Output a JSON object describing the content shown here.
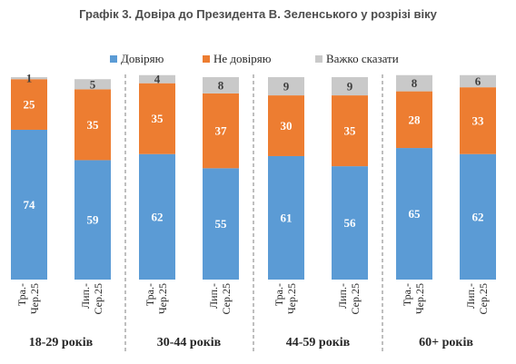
{
  "chart_data": {
    "type": "bar",
    "stacked": true,
    "title": "Графік 3. Довіра до Президента В. Зеленського у розрізі віку",
    "legend_position": "top",
    "grid": false,
    "ylim": [
      0,
      100
    ],
    "groups": [
      "18-29 років",
      "30-44 років",
      "44-59 років",
      "60+ років"
    ],
    "categories": [
      "Тра.-Чер.25",
      "Лип.-Сер.25",
      "Тра.-Чер.25",
      "Лип.-Сер.25",
      "Тра.-Чер.25",
      "Лип.-Сер.25",
      "Тра.-Чер.25",
      "Лип.-Сер.25"
    ],
    "category_lines": [
      [
        "Тра.-",
        "Чер.25"
      ],
      [
        "Лип.-",
        "Сер.25"
      ],
      [
        "Тра.-",
        "Чер.25"
      ],
      [
        "Лип.-",
        "Сер.25"
      ],
      [
        "Тра.-",
        "Чер.25"
      ],
      [
        "Лип.-",
        "Сер.25"
      ],
      [
        "Тра.-",
        "Чер.25"
      ],
      [
        "Лип.-",
        "Сер.25"
      ]
    ],
    "series": [
      {
        "name": "Довіряю",
        "color": "#5b9bd5",
        "label_color": "#ffffff",
        "values": [
          74,
          59,
          62,
          55,
          61,
          56,
          65,
          62
        ]
      },
      {
        "name": "Не довіряю",
        "color": "#ed7d31",
        "label_color": "#ffffff",
        "values": [
          25,
          35,
          35,
          37,
          30,
          35,
          28,
          33
        ]
      },
      {
        "name": "Важко сказати",
        "color": "#c9c9c9",
        "label_color": "#404040",
        "values": [
          1,
          5,
          4,
          8,
          9,
          9,
          8,
          6
        ]
      }
    ]
  }
}
